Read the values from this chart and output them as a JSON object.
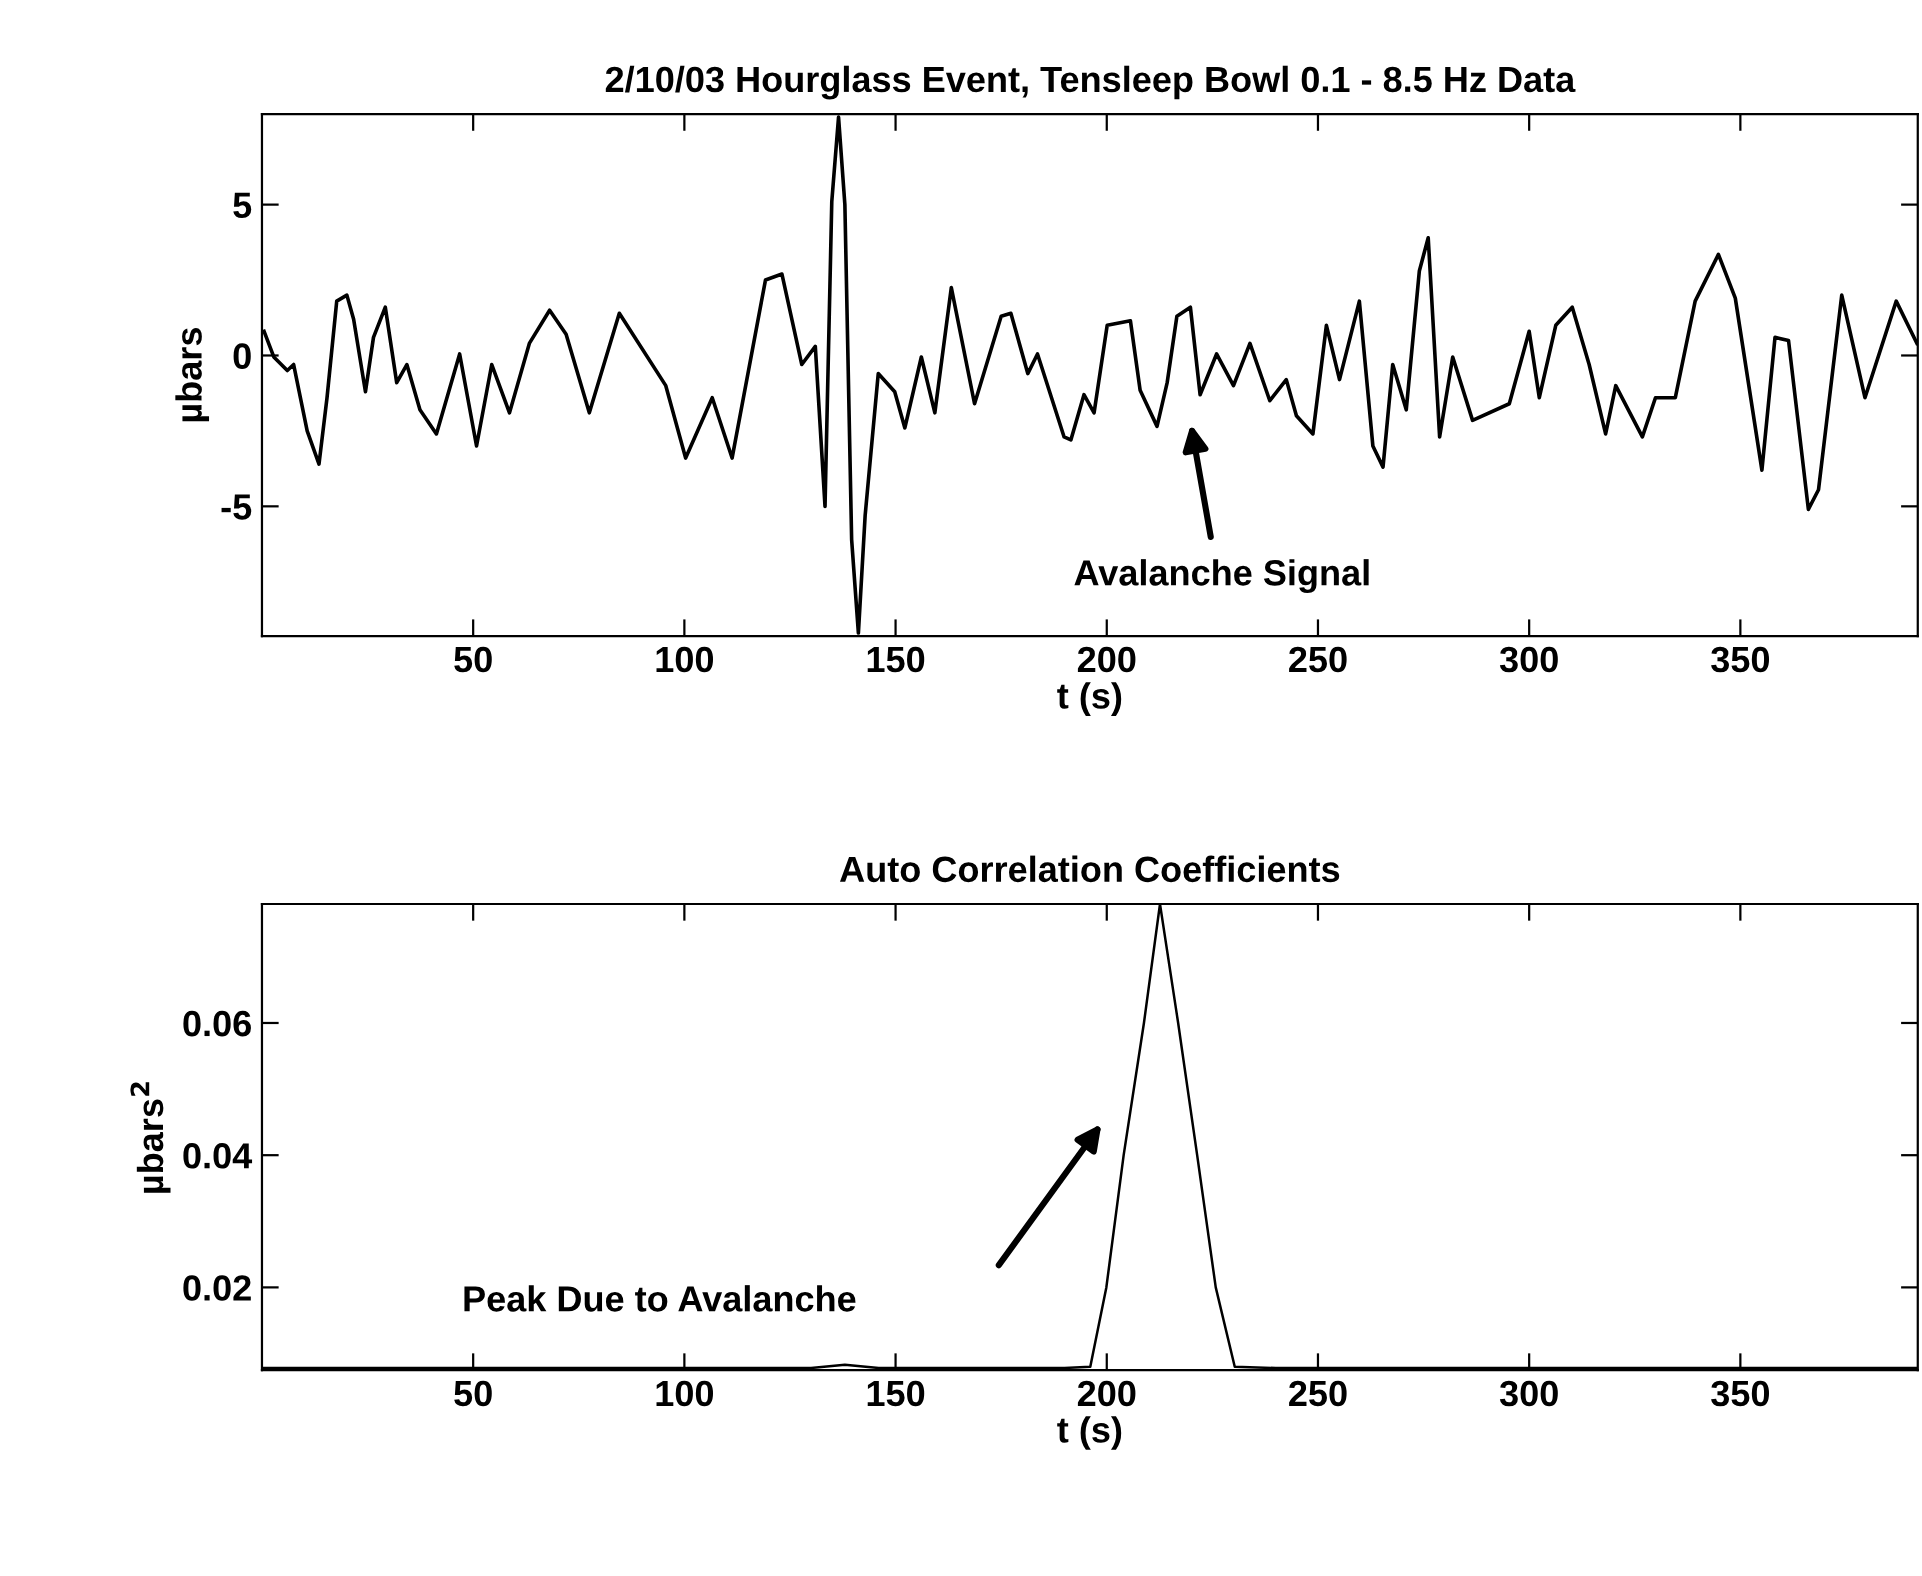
{
  "chart_data": [
    {
      "type": "line",
      "title": "2/10/03 Hourglass Event, Tensleep Bowl 0.1 - 8.5 Hz Data",
      "xlabel": "t (s)",
      "ylabel": "µbars",
      "xlim": [
        0,
        392
      ],
      "ylim": [
        -9.3,
        8
      ],
      "xticks": [
        50,
        100,
        150,
        200,
        250,
        300,
        350
      ],
      "yticks": [
        -5,
        0,
        5
      ],
      "grid": false,
      "legend": false,
      "series": [
        {
          "color": "#000000",
          "x": [
            0.5,
            2.8,
            6,
            7.5,
            10.7,
            13.5,
            15.4,
            17.7,
            20.1,
            21.7,
            24.5,
            26.4,
            29.2,
            31.9,
            34.3,
            37.4,
            41.3,
            46.8,
            50.8,
            54.4,
            58.6,
            63.3,
            68.1,
            72,
            77.5,
            84.6,
            95.6,
            100.3,
            106.6,
            111.3,
            119.2,
            123.1,
            127.8,
            131,
            133.3,
            134.9,
            136.5,
            138,
            139.6,
            141.2,
            142.8,
            145.9,
            149.8,
            152.2,
            156.1,
            159.3,
            163.2,
            168.7,
            175,
            177.3,
            181.3,
            183.6,
            189.9,
            191.5,
            194.6,
            197,
            200.1,
            205.6,
            207.9,
            211.9,
            214.3,
            216.6,
            219.8,
            222.1,
            226,
            230,
            233.9,
            238.6,
            242.5,
            244.9,
            248.8,
            252,
            255.1,
            259.8,
            263,
            265.4,
            267.7,
            270.9,
            274,
            276.1,
            278.8,
            281.9,
            286.6,
            295.3,
            300,
            302.4,
            306.3,
            310.2,
            314.2,
            318.1,
            320.5,
            326.8,
            329.9,
            334.6,
            339.3,
            344.8,
            348.8,
            355.1,
            358.2,
            361.4,
            366.1,
            368.5,
            374,
            379.5,
            386.9,
            391.8
          ],
          "values": [
            0.8,
            -0.05,
            -0.5,
            -0.3,
            -2.5,
            -3.6,
            -1.4,
            1.8,
            2.0,
            1.2,
            -1.2,
            0.6,
            1.6,
            -0.9,
            -0.3,
            -1.8,
            -2.6,
            0.05,
            -3.0,
            -0.3,
            -1.9,
            0.4,
            1.5,
            0.7,
            -1.9,
            1.4,
            -1.0,
            -3.4,
            -1.4,
            -3.4,
            2.5,
            2.7,
            -0.3,
            0.3,
            -5.0,
            5.1,
            7.9,
            5.0,
            -6.1,
            -9.2,
            -5.3,
            -0.6,
            -1.2,
            -2.4,
            -0.05,
            -1.9,
            2.25,
            -1.6,
            1.3,
            1.4,
            -0.6,
            0.05,
            -2.7,
            -2.8,
            -1.3,
            -1.9,
            1.0,
            1.15,
            -1.15,
            -2.35,
            -0.9,
            1.3,
            1.6,
            -1.3,
            0.05,
            -1.0,
            0.4,
            -1.5,
            -0.8,
            -2.0,
            -2.6,
            1.0,
            -0.8,
            1.8,
            -3.0,
            -3.7,
            -0.3,
            -1.8,
            2.8,
            3.9,
            -2.7,
            -0.05,
            -2.15,
            -1.6,
            0.8,
            -1.4,
            1.0,
            1.6,
            -0.3,
            -2.6,
            -1.0,
            -2.7,
            -1.4,
            -1.4,
            1.8,
            3.35,
            1.9,
            -3.8,
            0.6,
            0.5,
            -5.1,
            -4.45,
            2.0,
            -1.4,
            1.8,
            0.4
          ]
        }
      ],
      "annotations": [
        "Avalanche Signal"
      ]
    },
    {
      "type": "line",
      "title": "Auto Correlation Coefficients",
      "xlabel": "t (s)",
      "ylabel": "µbars$^{2}$",
      "xlim": [
        0,
        392
      ],
      "ylim": [
        0.0075,
        0.078
      ],
      "xticks": [
        50,
        100,
        150,
        200,
        250,
        300,
        350
      ],
      "yticks": [
        0.02,
        0.04,
        0.06
      ],
      "grid": false,
      "legend": false,
      "series": [
        {
          "color": "#000000",
          "x": [
            0.5,
            100,
            130,
            138,
            146,
            160,
            190,
            196.1,
            199.9,
            204,
            208.8,
            212.6,
            216.9,
            221.4,
            225.8,
            230.3,
            240,
            300,
            391.8
          ],
          "values": [
            0.0078,
            0.0078,
            0.0078,
            0.0083,
            0.0078,
            0.0078,
            0.0078,
            0.008,
            0.02,
            0.04,
            0.06,
            0.078,
            0.06,
            0.04,
            0.02,
            0.008,
            0.0078,
            0.0078,
            0.0078
          ]
        }
      ],
      "annotations": [
        "Peak Due to Avalanche"
      ]
    }
  ]
}
